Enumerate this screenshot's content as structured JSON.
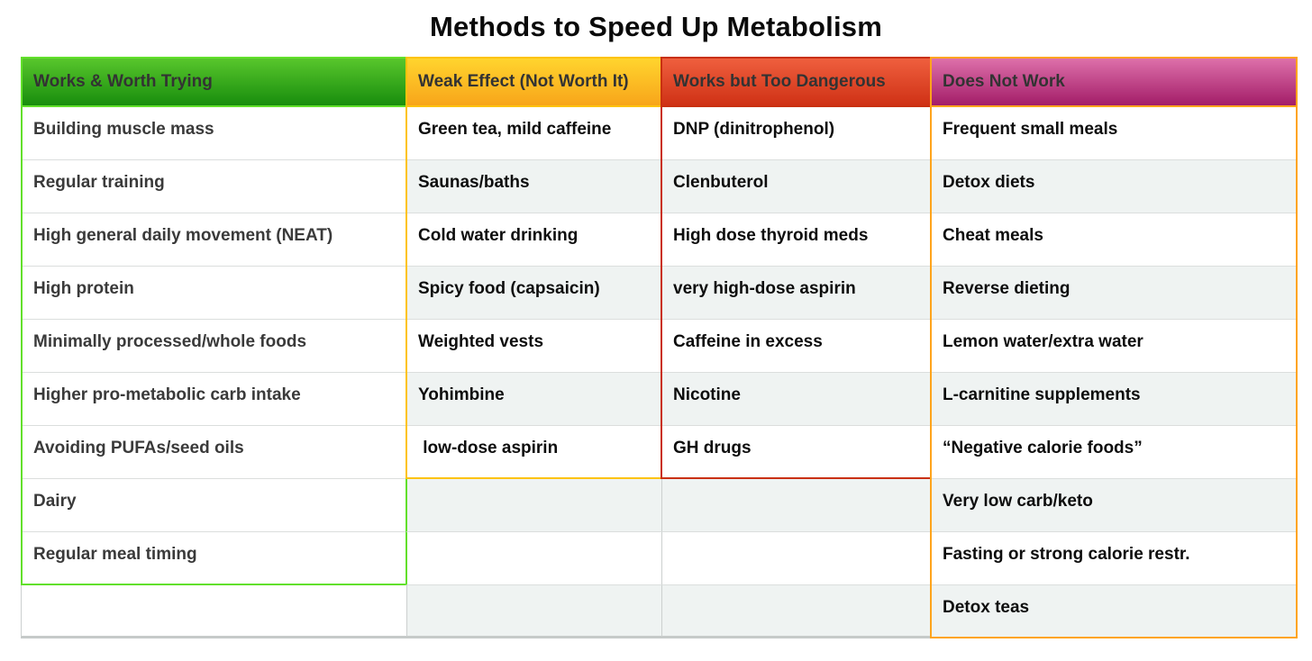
{
  "title": "Methods to Speed Up Metabolism",
  "columns": [
    {
      "header": "Works & Worth Trying",
      "category": "works-worth-trying",
      "border_color": "#62e02b",
      "header_top_color": "#58c62c",
      "header_bottom_color": "#188d0d",
      "zone_rows": 9,
      "rows": [
        "Building muscle mass",
        "Regular training",
        "High general daily movement (NEAT)",
        "High protein",
        "Minimally processed/whole foods",
        "Higher pro-metabolic carb intake",
        "Avoiding PUFAs/seed oils",
        "Dairy",
        "Regular meal timing",
        ""
      ]
    },
    {
      "header": "Weak Effect (Not Worth It)",
      "category": "weak-effect",
      "border_color": "#fdc30d",
      "header_top_color": "#ffd42e",
      "header_bottom_color": "#f8a51a",
      "zone_rows": 7,
      "rows": [
        "Green tea, mild caffeine",
        "Saunas/baths",
        "Cold water drinking",
        "Spicy food (capsaicin)",
        "Weighted vests",
        "Yohimbine",
        " low-dose aspirin",
        "",
        "",
        ""
      ]
    },
    {
      "header": "Works but Too Dangerous",
      "category": "works-too-dangerous",
      "border_color": "#c9300f",
      "header_top_color": "#ef5f3e",
      "header_bottom_color": "#cf3115",
      "zone_rows": 7,
      "rows": [
        "DNP (dinitrophenol)",
        "Clenbuterol",
        "High dose thyroid meds",
        "very high-dose aspirin",
        "Caffeine in excess",
        "Nicotine",
        "GH drugs",
        "",
        "",
        ""
      ]
    },
    {
      "header": "Does Not Work",
      "category": "does-not-work",
      "border_color": "#ffa41c",
      "header_top_color": "#dd70aa",
      "header_bottom_color": "#a31d68",
      "zone_rows": 10,
      "rows": [
        "Frequent small meals",
        "Detox diets",
        "Cheat meals",
        "Reverse dieting",
        "Lemon water/extra water",
        "L-carnitine supplements",
        "“Negative calorie foods”",
        "Very low carb/keto",
        "Fasting or strong calorie restr.",
        "Detox teas"
      ]
    }
  ],
  "chart_data": {
    "type": "table",
    "title": "Methods to Speed Up Metabolism",
    "legend_position": "none",
    "columns": [
      "Works & Worth Trying",
      "Weak Effect (Not Worth It)",
      "Works but Too Dangerous",
      "Does Not Work"
    ],
    "column_colors": [
      "#2ba314",
      "#fbb922",
      "#dd4326",
      "#c24487"
    ],
    "rows": [
      [
        "Building muscle mass",
        "Green tea, mild caffeine",
        "DNP (dinitrophenol)",
        "Frequent small meals"
      ],
      [
        "Regular training",
        "Saunas/baths",
        "Clenbuterol",
        "Detox diets"
      ],
      [
        "High general daily movement (NEAT)",
        "Cold water drinking",
        "High dose thyroid meds",
        "Cheat meals"
      ],
      [
        "High protein",
        "Spicy food (capsaicin)",
        "very high-dose aspirin",
        "Reverse dieting"
      ],
      [
        "Minimally processed/whole foods",
        "Weighted vests",
        "Caffeine in excess",
        "Lemon water/extra water"
      ],
      [
        "Higher pro-metabolic carb intake",
        "Yohimbine",
        "Nicotine",
        "L-carnitine supplements"
      ],
      [
        "Avoiding PUFAs/seed oils",
        "low-dose aspirin",
        "GH drugs",
        "“Negative calorie foods”"
      ],
      [
        "Dairy",
        "",
        "",
        "Very low carb/keto"
      ],
      [
        "Regular meal timing",
        "",
        "",
        "Fasting or strong calorie restr."
      ],
      [
        "",
        "",
        "",
        "Detox teas"
      ]
    ]
  }
}
